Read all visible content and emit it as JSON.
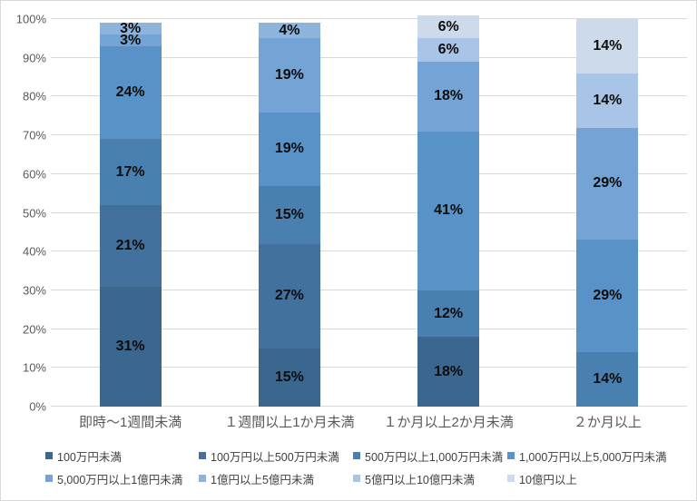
{
  "chart": {
    "background_color": "#ffffff",
    "border_color": "#d9d9d9",
    "grid_color": "#d9d9d9",
    "axis_label_color": "#595959",
    "data_label_color": "#0d0d0d",
    "legend_text_color": "#404040"
  },
  "chart_data": {
    "type": "bar",
    "stacked": true,
    "orientation": "vertical",
    "unit": "%",
    "grid": true,
    "legend_position": "bottom",
    "ylim": [
      0,
      100
    ],
    "y_ticks": [
      {
        "value": 0,
        "label": "0%"
      },
      {
        "value": 10,
        "label": "10%"
      },
      {
        "value": 20,
        "label": "20%"
      },
      {
        "value": 30,
        "label": "30%"
      },
      {
        "value": 40,
        "label": "40%"
      },
      {
        "value": 50,
        "label": "50%"
      },
      {
        "value": 60,
        "label": "60%"
      },
      {
        "value": 70,
        "label": "70%"
      },
      {
        "value": 80,
        "label": "80%"
      },
      {
        "value": 90,
        "label": "90%"
      },
      {
        "value": 100,
        "label": "100%"
      }
    ],
    "categories": [
      "即時～1週間未満",
      "１週間以上1か月未満",
      "１か月以上2か月未満",
      "２か月以上"
    ],
    "series": [
      {
        "name": "100万円未満",
        "color": "#3B678F",
        "values": [
          31,
          15,
          18,
          0
        ]
      },
      {
        "name": "100万円以上500万円未満",
        "color": "#41719C",
        "values": [
          21,
          27,
          0,
          0
        ]
      },
      {
        "name": "500万円以上1,000万円未満",
        "color": "#4A80B0",
        "values": [
          17,
          15,
          12,
          14
        ]
      },
      {
        "name": "1,000万円以上5,000万円未満",
        "color": "#5892C6",
        "values": [
          24,
          19,
          41,
          29
        ]
      },
      {
        "name": "5,000万円以上1億円未満",
        "color": "#74A4D6",
        "values": [
          3,
          19,
          18,
          29
        ]
      },
      {
        "name": "1億円以上5億円未満",
        "color": "#8EB4DE",
        "values": [
          3,
          4,
          0,
          0
        ]
      },
      {
        "name": "5億円以上10億円未満",
        "color": "#A8C4E6",
        "values": [
          0,
          0,
          6,
          14
        ]
      },
      {
        "name": "10億円以上",
        "color": "#CDDAEC",
        "values": [
          0,
          0,
          6,
          14
        ]
      }
    ],
    "legend_layout": {
      "rows": [
        493,
        518
      ],
      "column_lefts": [
        49,
        218,
        388,
        558
      ],
      "order": "first four series in row 1, last four in row 2"
    }
  }
}
